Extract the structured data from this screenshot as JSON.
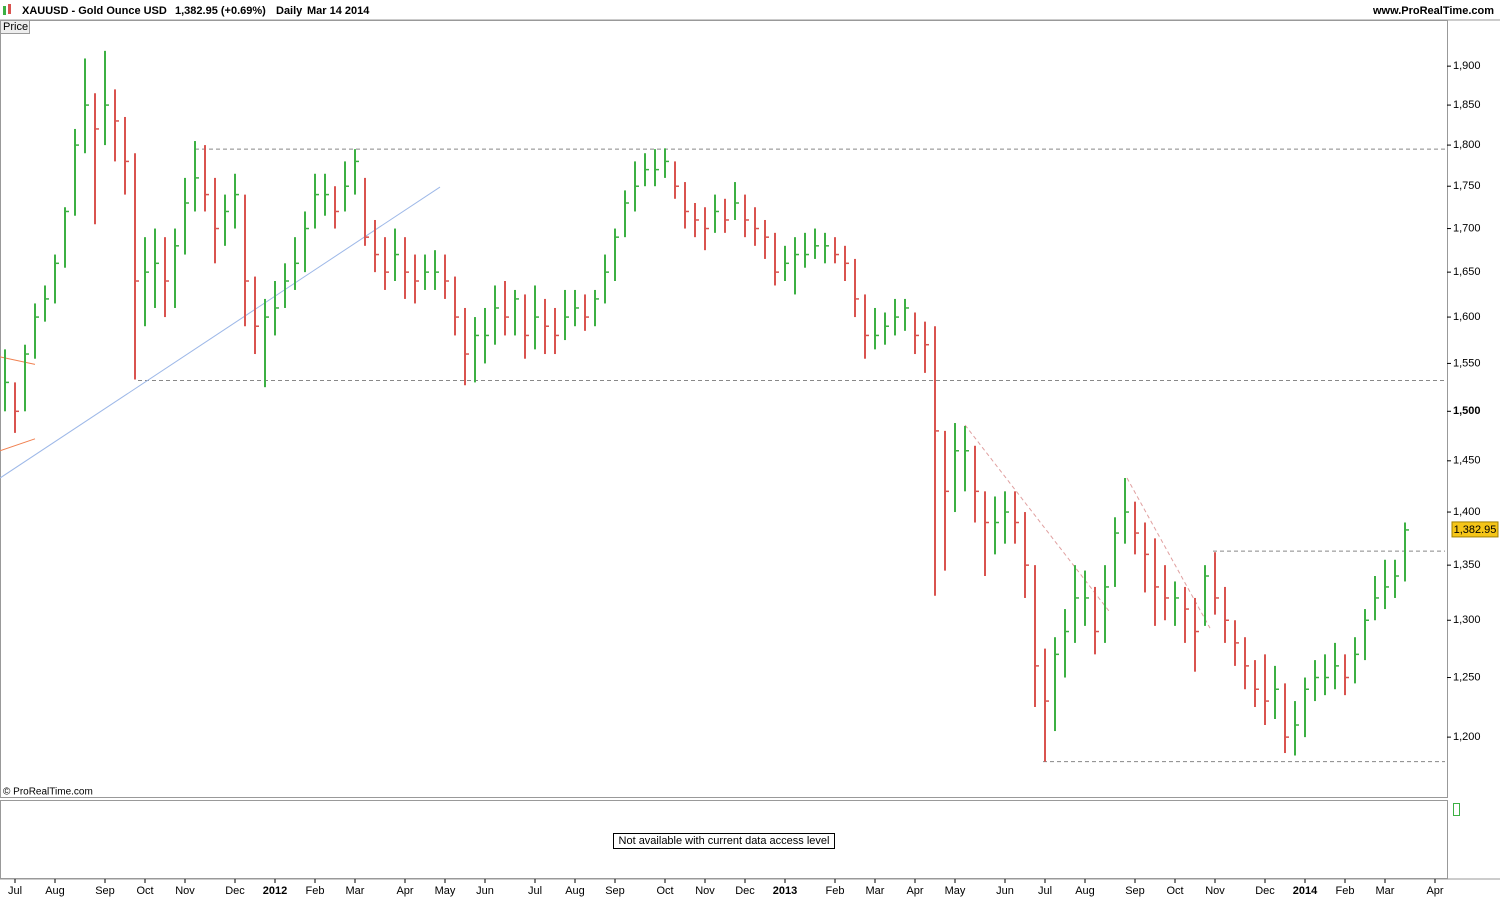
{
  "header": {
    "symbol": "XAUUSD - Gold Ounce USD",
    "quote": "1,382.95 (+0.69%)",
    "period": "Daily",
    "date": "Mar 14 2014",
    "site": "www.ProRealTime.com"
  },
  "panel_label": "Price",
  "copyright": "© ProRealTime.com",
  "lower_panel_message": "Not available with current data access level",
  "chart_data": {
    "type": "ohlc",
    "log_scale": true,
    "up_color": "#3cb043",
    "down_color": "#d9534f",
    "categories": [
      null,
      "Jul",
      null,
      null,
      null,
      "Aug",
      null,
      null,
      null,
      null,
      "Sep",
      null,
      null,
      null,
      "Oct",
      null,
      null,
      null,
      "Nov",
      null,
      null,
      null,
      null,
      "Dec",
      null,
      null,
      null,
      "2012",
      null,
      null,
      null,
      "Feb",
      null,
      null,
      null,
      "Mar",
      null,
      null,
      null,
      null,
      "Apr",
      null,
      null,
      null,
      "May",
      null,
      null,
      null,
      "Jun",
      null,
      null,
      null,
      null,
      "Jul",
      null,
      null,
      null,
      "Aug",
      null,
      null,
      null,
      "Sep",
      null,
      null,
      null,
      null,
      "Oct",
      null,
      null,
      null,
      "Nov",
      null,
      null,
      null,
      "Dec",
      null,
      null,
      null,
      "2013",
      null,
      null,
      null,
      null,
      "Feb",
      null,
      null,
      null,
      "Mar",
      null,
      null,
      null,
      "Apr",
      null,
      null,
      null,
      "May",
      null,
      null,
      null,
      null,
      "Jun",
      null,
      null,
      null,
      "Jul",
      null,
      null,
      null,
      "Aug",
      null,
      null,
      null,
      null,
      "Sep",
      null,
      null,
      null,
      "Oct",
      null,
      null,
      null,
      "Nov",
      null,
      null,
      null,
      null,
      "Dec",
      null,
      null,
      null,
      "2014",
      null,
      null,
      null,
      "Feb",
      null,
      null,
      null,
      "Mar",
      null,
      null,
      null,
      null,
      "Apr"
    ],
    "high": [
      1565,
      1530,
      1570,
      1615,
      1635,
      1670,
      1725,
      1820,
      1910,
      1865,
      1920,
      1870,
      1835,
      1790,
      1690,
      1700,
      1690,
      1700,
      1760,
      1805,
      1800,
      1760,
      1740,
      1765,
      1740,
      1645,
      1620,
      1640,
      1660,
      1690,
      1720,
      1765,
      1765,
      1750,
      1780,
      1795,
      1760,
      1710,
      1690,
      1700,
      1690,
      1670,
      1670,
      1675,
      1670,
      1645,
      1610,
      1600,
      1610,
      1635,
      1640,
      1630,
      1625,
      1635,
      1620,
      1610,
      1630,
      1630,
      1625,
      1630,
      1670,
      1700,
      1745,
      1780,
      1790,
      1795,
      1796,
      1780,
      1755,
      1730,
      1725,
      1740,
      1735,
      1755,
      1740,
      1725,
      1710,
      1695,
      1680,
      1690,
      1695,
      1700,
      1695,
      1690,
      1680,
      1665,
      1625,
      1610,
      1605,
      1620,
      1620,
      1605,
      1595,
      1590,
      1480,
      1488,
      1485,
      1465,
      1420,
      1415,
      1420,
      1420,
      1400,
      1350,
      1275,
      1285,
      1310,
      1350,
      1345,
      1330,
      1350,
      1395,
      1433,
      1410,
      1390,
      1375,
      1350,
      1335,
      1330,
      1320,
      1350,
      1362,
      1330,
      1300,
      1285,
      1265,
      1270,
      1260,
      1245,
      1230,
      1250,
      1265,
      1270,
      1280,
      1270,
      1285,
      1310,
      1340,
      1355,
      1355,
      1390,
      null,
      null,
      null
    ],
    "low": [
      1500,
      1478,
      1500,
      1555,
      1595,
      1615,
      1655,
      1715,
      1790,
      1705,
      1800,
      1780,
      1740,
      1533,
      1590,
      1610,
      1600,
      1610,
      1670,
      1720,
      1720,
      1660,
      1680,
      1700,
      1590,
      1560,
      1525,
      1580,
      1610,
      1630,
      1650,
      1700,
      1715,
      1700,
      1720,
      1740,
      1680,
      1650,
      1630,
      1640,
      1620,
      1615,
      1630,
      1630,
      1620,
      1580,
      1527,
      1530,
      1550,
      1570,
      1580,
      1580,
      1555,
      1565,
      1560,
      1560,
      1575,
      1590,
      1585,
      1590,
      1615,
      1640,
      1690,
      1720,
      1750,
      1750,
      1760,
      1735,
      1700,
      1690,
      1675,
      1695,
      1695,
      1710,
      1690,
      1680,
      1665,
      1635,
      1640,
      1625,
      1655,
      1665,
      1660,
      1660,
      1640,
      1600,
      1555,
      1565,
      1570,
      1580,
      1585,
      1560,
      1540,
      1322,
      1345,
      1400,
      1420,
      1390,
      1340,
      1360,
      1370,
      1370,
      1320,
      1225,
      1180,
      1205,
      1250,
      1280,
      1295,
      1270,
      1280,
      1330,
      1370,
      1360,
      1325,
      1295,
      1300,
      1295,
      1280,
      1255,
      1295,
      1305,
      1280,
      1260,
      1240,
      1225,
      1210,
      1215,
      1187,
      1185,
      1200,
      1230,
      1235,
      1240,
      1235,
      1245,
      1265,
      1300,
      1310,
      1320,
      1335,
      null,
      null,
      null
    ],
    "close": [
      1530,
      1500,
      1560,
      1600,
      1620,
      1660,
      1720,
      1800,
      1850,
      1820,
      1850,
      1830,
      1780,
      1640,
      1650,
      1660,
      1640,
      1680,
      1730,
      1760,
      1740,
      1700,
      1720,
      1740,
      1640,
      1590,
      1600,
      1610,
      1640,
      1660,
      1700,
      1740,
      1740,
      1720,
      1750,
      1780,
      1690,
      1670,
      1650,
      1670,
      1650,
      1640,
      1650,
      1650,
      1640,
      1600,
      1560,
      1580,
      1580,
      1610,
      1600,
      1620,
      1580,
      1600,
      1590,
      1580,
      1600,
      1610,
      1600,
      1620,
      1650,
      1690,
      1730,
      1750,
      1770,
      1770,
      1780,
      1750,
      1720,
      1710,
      1700,
      1720,
      1710,
      1730,
      1710,
      1700,
      1690,
      1650,
      1660,
      1670,
      1670,
      1680,
      1680,
      1670,
      1660,
      1620,
      1580,
      1580,
      1590,
      1600,
      1610,
      1580,
      1570,
      1480,
      1420,
      1460,
      1460,
      1420,
      1390,
      1390,
      1400,
      1390,
      1350,
      1260,
      1230,
      1270,
      1290,
      1320,
      1320,
      1290,
      1330,
      1380,
      1400,
      1380,
      1360,
      1330,
      1320,
      1320,
      1310,
      1290,
      1340,
      1320,
      1300,
      1280,
      1260,
      1240,
      1230,
      1240,
      1200,
      1210,
      1240,
      1250,
      1250,
      1260,
      1250,
      1270,
      1300,
      1320,
      1330,
      1340,
      1382.95,
      null,
      null,
      null
    ],
    "last_label": "1,382.95",
    "last_label_color": "#f5c518",
    "ylim": [
      1151,
      1961
    ],
    "yticks": [
      {
        "value": 1200,
        "label": "1,200"
      },
      {
        "value": 1250,
        "label": "1,250"
      },
      {
        "value": 1300,
        "label": "1,300"
      },
      {
        "value": 1350,
        "label": "1,350"
      },
      {
        "value": 1400,
        "label": "1,400"
      },
      {
        "value": 1450,
        "label": "1,450"
      },
      {
        "value": 1500,
        "label": "1,500"
      },
      {
        "value": 1550,
        "label": "1,550"
      },
      {
        "value": 1600,
        "label": "1,600"
      },
      {
        "value": 1650,
        "label": "1,650"
      },
      {
        "value": 1700,
        "label": "1,700"
      },
      {
        "value": 1750,
        "label": "1,750"
      },
      {
        "value": 1800,
        "label": "1,800"
      },
      {
        "value": 1850,
        "label": "1,850"
      },
      {
        "value": 1900,
        "label": "1,900"
      }
    ],
    "bold_tick": 1500,
    "drawings": [
      {
        "x": [
          19,
          144
        ],
        "y": [
          1795,
          1795
        ],
        "color": "#888888",
        "dashed": true
      },
      {
        "x": [
          13.3,
          144
        ],
        "y": [
          1532,
          1532
        ],
        "color": "#888888",
        "dashed": true
      },
      {
        "x": [
          120.8,
          144
        ],
        "y": [
          1363,
          1363
        ],
        "color": "#888888",
        "dashed": true
      },
      {
        "x": [
          103.8,
          144
        ],
        "y": [
          1180,
          1180
        ],
        "color": "#888888",
        "dashed": true
      },
      {
        "x": [
          -0.5,
          43.5
        ],
        "y": [
          1433,
          1749
        ],
        "color": "#9db8e8",
        "dashed": false
      },
      {
        "x": [
          96,
          110.5
        ],
        "y": [
          1486,
          1307
        ],
        "color": "#e0a0a0",
        "dashed": true
      },
      {
        "x": [
          112.2,
          120.5
        ],
        "y": [
          1433,
          1293
        ],
        "color": "#e0a0a0",
        "dashed": true
      },
      {
        "x": [
          -0.5,
          3
        ],
        "y": [
          1557,
          1549
        ],
        "color": "#f08050",
        "dashed": false
      },
      {
        "x": [
          -0.5,
          3
        ],
        "y": [
          1460,
          1472
        ],
        "color": "#f08050",
        "dashed": false
      }
    ]
  }
}
